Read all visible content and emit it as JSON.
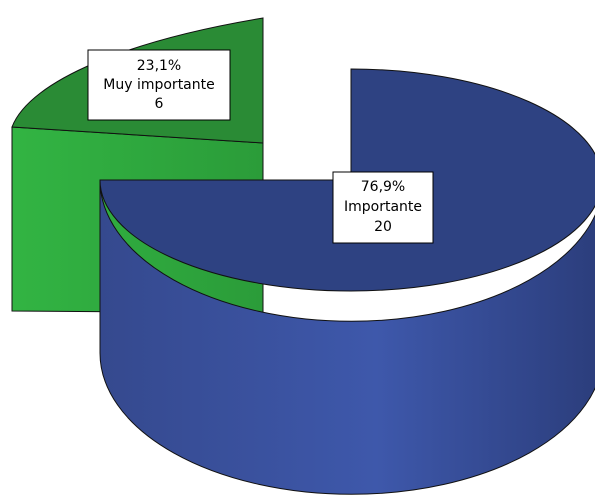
{
  "chart_data": {
    "type": "pie",
    "title": "",
    "style": "3d-exploded",
    "slices": [
      {
        "category": "Importante",
        "percent_label": "76,9%",
        "count_label": "20",
        "value": 20,
        "color": "#344a92"
      },
      {
        "category": "Muy importante",
        "percent_label": "23,1%",
        "count_label": "6",
        "value": 6,
        "color": "#2f9a39"
      }
    ]
  }
}
